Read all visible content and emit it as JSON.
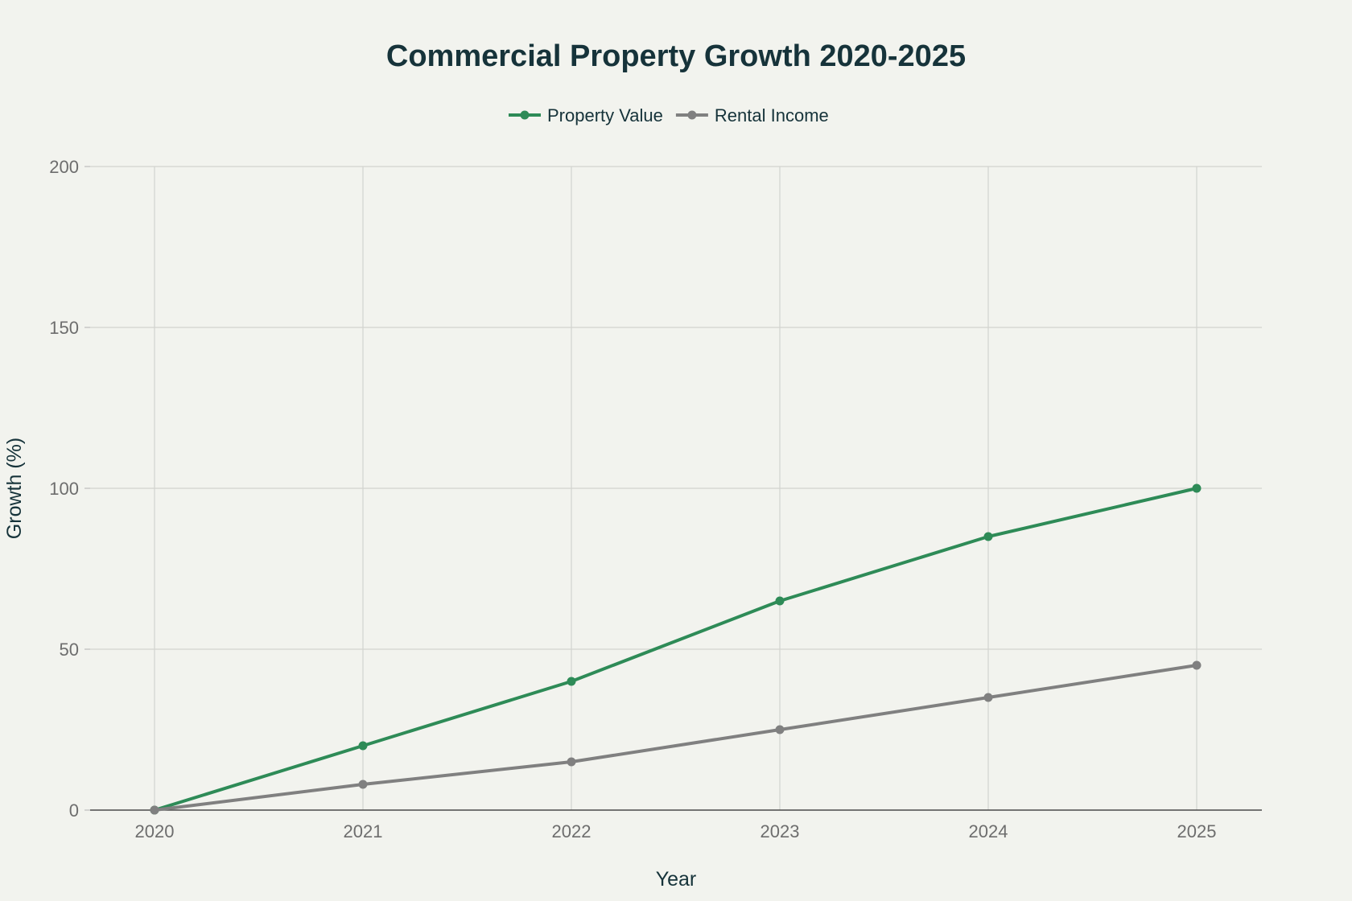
{
  "chart_data": {
    "type": "line",
    "title": "Commercial Property Growth 2020-2025",
    "xlabel": "Year",
    "ylabel": "Growth (%)",
    "categories": [
      "2020",
      "2021",
      "2022",
      "2023",
      "2024",
      "2025"
    ],
    "ylim": [
      0,
      200
    ],
    "yticks": [
      0,
      50,
      100,
      150,
      200
    ],
    "grid": true,
    "legend_position": "top-center",
    "series": [
      {
        "name": "Property Value",
        "color": "#2e8b57",
        "values": [
          0,
          20,
          40,
          65,
          85,
          100
        ]
      },
      {
        "name": "Rental Income",
        "color": "#808080",
        "values": [
          0,
          8,
          15,
          25,
          35,
          45
        ]
      }
    ]
  }
}
